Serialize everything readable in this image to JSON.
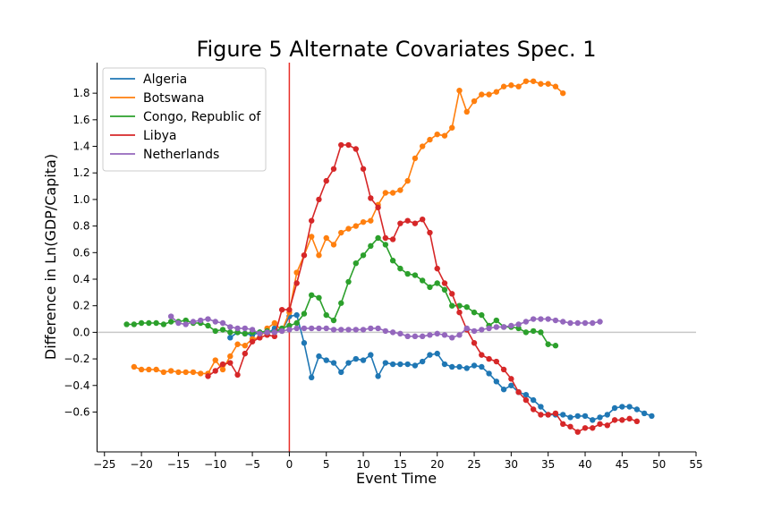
{
  "chart_data": {
    "type": "line",
    "title": "Figure 5 Alternate Covariates Spec. 1",
    "xlabel": "Event Time",
    "ylabel": "Difference in Ln(GDP/Capita)",
    "xlim": [
      -26,
      55
    ],
    "ylim": [
      -0.9,
      2.03
    ],
    "xticks": [
      -25,
      -20,
      -15,
      -10,
      -5,
      0,
      5,
      10,
      15,
      20,
      25,
      30,
      35,
      40,
      45,
      50,
      55
    ],
    "yticks": [
      -0.6,
      -0.4,
      -0.2,
      0.0,
      0.2,
      0.4,
      0.6,
      0.8,
      1.0,
      1.2,
      1.4,
      1.6,
      1.8
    ],
    "xtick_labels": [
      "−25",
      "−20",
      "−15",
      "−10",
      "−5",
      "0",
      "5",
      "10",
      "15",
      "20",
      "25",
      "30",
      "35",
      "40",
      "45",
      "50",
      "55"
    ],
    "ytick_labels": [
      "−0.6",
      "−0.4",
      "−0.2",
      "0.0",
      "0.2",
      "0.4",
      "0.6",
      "0.8",
      "1.0",
      "1.2",
      "1.4",
      "1.6",
      "1.8"
    ],
    "reference_lines": [
      {
        "axis": "y",
        "value": 0,
        "color": "#c8c8c8"
      },
      {
        "axis": "x",
        "value": 0,
        "color": "#e8302a"
      }
    ],
    "legend": {
      "position": "top-left"
    },
    "grid": false,
    "series": [
      {
        "name": "Algeria",
        "color": "#1f77b4",
        "x": [
          -8,
          -7,
          -6,
          -5,
          -4,
          -3,
          -2,
          -1,
          0,
          1,
          2,
          3,
          4,
          5,
          6,
          7,
          8,
          9,
          10,
          11,
          12,
          13,
          14,
          15,
          16,
          17,
          18,
          19,
          20,
          21,
          22,
          23,
          24,
          25,
          26,
          27,
          28,
          29,
          30,
          31,
          32,
          33,
          34,
          35,
          36,
          37,
          38,
          39,
          40,
          41,
          42,
          43,
          44,
          45,
          46,
          47,
          48,
          49
        ],
        "y": [
          -0.04,
          0.0,
          -0.01,
          -0.02,
          0.0,
          -0.01,
          0.03,
          0.01,
          0.12,
          0.13,
          -0.08,
          -0.34,
          -0.18,
          -0.21,
          -0.23,
          -0.3,
          -0.23,
          -0.2,
          -0.21,
          -0.17,
          -0.33,
          -0.23,
          -0.24,
          -0.24,
          -0.24,
          -0.25,
          -0.22,
          -0.17,
          -0.16,
          -0.24,
          -0.26,
          -0.26,
          -0.27,
          -0.25,
          -0.26,
          -0.31,
          -0.37,
          -0.43,
          -0.4,
          -0.45,
          -0.47,
          -0.51,
          -0.56,
          -0.62,
          -0.62,
          -0.62,
          -0.64,
          -0.63,
          -0.63,
          -0.66,
          -0.64,
          -0.62,
          -0.57,
          -0.56,
          -0.56,
          -0.58,
          -0.61,
          -0.63
        ]
      },
      {
        "name": "Botswana",
        "color": "#ff7f0e",
        "x": [
          -21,
          -20,
          -19,
          -18,
          -17,
          -16,
          -15,
          -14,
          -13,
          -12,
          -11,
          -10,
          -9,
          -8,
          -7,
          -6,
          -5,
          -4,
          -3,
          -2,
          -1,
          0,
          1,
          2,
          3,
          4,
          5,
          6,
          7,
          8,
          9,
          10,
          11,
          12,
          13,
          14,
          15,
          16,
          17,
          18,
          19,
          20,
          21,
          22,
          23,
          24,
          25,
          26,
          27,
          28,
          29,
          30,
          31,
          32,
          33,
          34,
          35,
          36,
          37
        ],
        "y": [
          -0.26,
          -0.28,
          -0.28,
          -0.28,
          -0.3,
          -0.29,
          -0.3,
          -0.3,
          -0.3,
          -0.31,
          -0.31,
          -0.21,
          -0.28,
          -0.18,
          -0.09,
          -0.1,
          -0.05,
          -0.04,
          0.03,
          0.07,
          0.01,
          0.15,
          0.45,
          0.58,
          0.72,
          0.58,
          0.71,
          0.66,
          0.75,
          0.78,
          0.8,
          0.83,
          0.84,
          0.96,
          1.05,
          1.05,
          1.07,
          1.14,
          1.31,
          1.4,
          1.45,
          1.49,
          1.48,
          1.54,
          1.82,
          1.66,
          1.74,
          1.79,
          1.79,
          1.81,
          1.85,
          1.86,
          1.85,
          1.89,
          1.89,
          1.87,
          1.87,
          1.85,
          1.8
        ]
      },
      {
        "name": "Congo, Republic of",
        "color": "#2ca02c",
        "x": [
          -22,
          -21,
          -20,
          -19,
          -18,
          -17,
          -16,
          -15,
          -14,
          -13,
          -12,
          -11,
          -10,
          -9,
          -8,
          -7,
          -6,
          -5,
          -4,
          -3,
          -2,
          -1,
          0,
          1,
          2,
          3,
          4,
          5,
          6,
          7,
          8,
          9,
          10,
          11,
          12,
          13,
          14,
          15,
          16,
          17,
          18,
          19,
          20,
          21,
          22,
          23,
          24,
          25,
          26,
          27,
          28,
          29,
          30,
          31,
          32,
          33,
          34,
          35,
          36
        ],
        "y": [
          0.06,
          0.06,
          0.07,
          0.07,
          0.07,
          0.06,
          0.08,
          0.08,
          0.09,
          0.07,
          0.07,
          0.05,
          0.01,
          0.02,
          0.0,
          0.0,
          -0.01,
          0.0,
          0.0,
          0.01,
          0.0,
          0.03,
          0.05,
          0.07,
          0.14,
          0.28,
          0.26,
          0.13,
          0.09,
          0.22,
          0.38,
          0.52,
          0.58,
          0.65,
          0.71,
          0.66,
          0.54,
          0.48,
          0.44,
          0.43,
          0.39,
          0.34,
          0.37,
          0.32,
          0.2,
          0.2,
          0.19,
          0.15,
          0.13,
          0.05,
          0.09,
          0.04,
          0.04,
          0.03,
          0.0,
          0.01,
          0.0,
          -0.09,
          -0.1
        ]
      },
      {
        "name": "Libya",
        "color": "#d62728",
        "x": [
          -11,
          -10,
          -9,
          -8,
          -7,
          -6,
          -5,
          -4,
          -3,
          -2,
          -1,
          0,
          1,
          2,
          3,
          4,
          5,
          6,
          7,
          8,
          9,
          10,
          11,
          12,
          13,
          14,
          15,
          16,
          17,
          18,
          19,
          20,
          21,
          22,
          23,
          24,
          25,
          26,
          27,
          28,
          29,
          30,
          31,
          32,
          33,
          34,
          35,
          36,
          37,
          38,
          39,
          40,
          41,
          42,
          43,
          44,
          45,
          46,
          47
        ],
        "y": [
          -0.33,
          -0.29,
          -0.24,
          -0.23,
          -0.32,
          -0.16,
          -0.07,
          -0.04,
          -0.02,
          -0.03,
          0.17,
          0.17,
          0.37,
          0.58,
          0.84,
          1.0,
          1.14,
          1.23,
          1.41,
          1.41,
          1.38,
          1.23,
          1.01,
          0.94,
          0.71,
          0.7,
          0.82,
          0.84,
          0.82,
          0.85,
          0.75,
          0.48,
          0.37,
          0.29,
          0.15,
          0.02,
          -0.08,
          -0.17,
          -0.2,
          -0.22,
          -0.28,
          -0.35,
          -0.45,
          -0.51,
          -0.58,
          -0.62,
          -0.62,
          -0.61,
          -0.69,
          -0.71,
          -0.75,
          -0.72,
          -0.72,
          -0.69,
          -0.7,
          -0.66,
          -0.66,
          -0.65,
          -0.67
        ]
      },
      {
        "name": "Netherlands",
        "color": "#9467bd",
        "x": [
          -16,
          -15,
          -14,
          -13,
          -12,
          -11,
          -10,
          -9,
          -8,
          -7,
          -6,
          -5,
          -4,
          -3,
          -2,
          -1,
          0,
          1,
          2,
          3,
          4,
          5,
          6,
          7,
          8,
          9,
          10,
          11,
          12,
          13,
          14,
          15,
          16,
          17,
          18,
          19,
          20,
          21,
          22,
          23,
          24,
          25,
          26,
          27,
          28,
          29,
          30,
          31,
          32,
          33,
          34,
          35,
          36,
          37,
          38,
          39,
          40,
          41,
          42
        ],
        "y": [
          0.12,
          0.07,
          0.06,
          0.08,
          0.09,
          0.1,
          0.08,
          0.07,
          0.04,
          0.03,
          0.03,
          0.02,
          -0.01,
          0.0,
          0.0,
          0.01,
          0.02,
          0.03,
          0.03,
          0.03,
          0.03,
          0.03,
          0.02,
          0.02,
          0.02,
          0.02,
          0.02,
          0.03,
          0.03,
          0.01,
          0.0,
          -0.01,
          -0.03,
          -0.03,
          -0.03,
          -0.02,
          -0.01,
          -0.02,
          -0.04,
          -0.02,
          0.03,
          0.01,
          0.02,
          0.03,
          0.04,
          0.04,
          0.05,
          0.06,
          0.08,
          0.1,
          0.1,
          0.1,
          0.09,
          0.08,
          0.07,
          0.07,
          0.07,
          0.07,
          0.08
        ]
      }
    ]
  }
}
